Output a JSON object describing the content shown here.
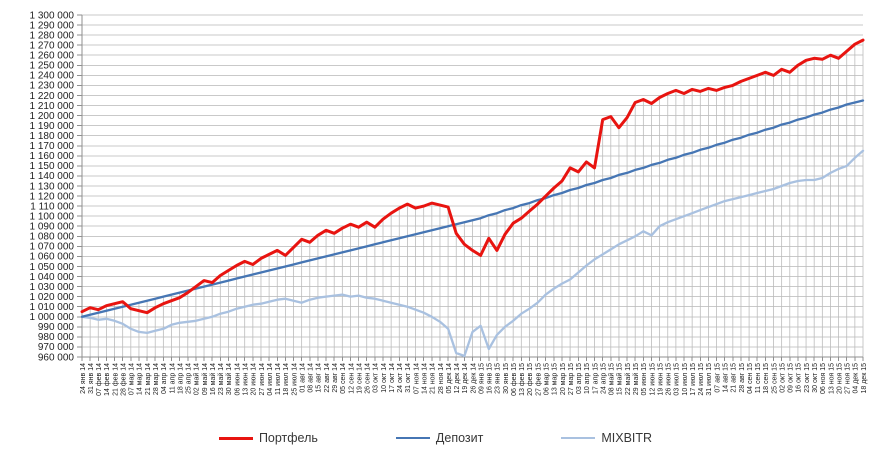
{
  "chart_data": {
    "type": "line",
    "title": "",
    "xlabel": "",
    "ylabel": "",
    "ylim": [
      960000,
      1300000
    ],
    "ytick_step": 10000,
    "grid": {
      "horizontal": true,
      "vertical": false,
      "drop_lines": true
    },
    "legend_position": "bottom",
    "colors": {
      "gridline": "#c9c9c9",
      "dropline": "#bcbcbc",
      "axis": "#8f8f8f",
      "tick_text": "#1f1f1f"
    },
    "ytick_labels": [
      "1 300 000",
      "1 290 000",
      "1 280 000",
      "1 270 000",
      "1 260 000",
      "1 250 000",
      "1 240 000",
      "1 230 000",
      "1 220 000",
      "1 210 000",
      "1 200 000",
      "1 190 000",
      "1 180 000",
      "1 170 000",
      "1 160 000",
      "1 150 000",
      "1 140 000",
      "1 130 000",
      "1 120 000",
      "1 110 000",
      "1 100 000",
      "1 090 000",
      "1 080 000",
      "1 070 000",
      "1 060 000",
      "1 050 000",
      "1 040 000",
      "1 030 000",
      "1 020 000",
      "1 010 000",
      "1 000 000",
      "990 000",
      "980 000",
      "970 000",
      "960 000"
    ],
    "x_labels": [
      "24 янв 14",
      "31 янв 14",
      "07 фев 14",
      "14 фев 14",
      "21 фев 14",
      "28 фев 14",
      "07 мар 14",
      "14 мар 14",
      "21 мар 14",
      "28 мар 14",
      "04 апр 14",
      "11 апр 14",
      "18 апр 14",
      "25 апр 14",
      "02 май 14",
      "09 май 14",
      "16 май 14",
      "23 май 14",
      "30 май 14",
      "06 июн 14",
      "13 июн 14",
      "20 июн 14",
      "27 июн 14",
      "04 июл 14",
      "11 июл 14",
      "18 июл 14",
      "25 июл 14",
      "01 авг 14",
      "08 авг 14",
      "15 авг 14",
      "22 авг 14",
      "29 авг 14",
      "05 сен 14",
      "12 сен 14",
      "19 сен 14",
      "26 сен 14",
      "03 окт 14",
      "10 окт 14",
      "17 окт 14",
      "24 окт 14",
      "31 окт 14",
      "07 ноя 14",
      "14 ноя 14",
      "21 ноя 14",
      "28 ноя 14",
      "05 дек 14",
      "12 дек 14",
      "19 дек 14",
      "26 дек 14",
      "09 янв 15",
      "16 янв 15",
      "23 янв 15",
      "30 янв 15",
      "06 фев 15",
      "13 фев 15",
      "20 фев 15",
      "27 фев 15",
      "06 мар 15",
      "13 мар 15",
      "20 мар 15",
      "27 мар 15",
      "03 апр 15",
      "10 апр 15",
      "17 апр 15",
      "24 апр 15",
      "08 май 15",
      "15 май 15",
      "22 май 15",
      "29 май 15",
      "05 июн 15",
      "12 июн 15",
      "19 июн 15",
      "26 июн 15",
      "03 июл 15",
      "10 июл 15",
      "17 июл 15",
      "24 июл 15",
      "31 июл 15",
      "07 авг 15",
      "14 авг 15",
      "21 авг 15",
      "28 авг 15",
      "04 сен 15",
      "11 сен 15",
      "18 сен 15",
      "25 сен 15",
      "02 окт 15",
      "09 окт 15",
      "16 окт 15",
      "23 окт 15",
      "30 окт 15",
      "06 ноя 15",
      "13 ноя 15",
      "20 ноя 15",
      "27 ноя 15",
      "04 дек 15",
      "18 дек 15"
    ],
    "series": [
      {
        "name": "Портфель",
        "color": "#e81410",
        "line_width": 3,
        "values": [
          1005000,
          1009000,
          1007000,
          1011000,
          1013000,
          1015000,
          1008000,
          1006000,
          1004000,
          1009000,
          1013000,
          1016000,
          1019000,
          1024000,
          1030000,
          1036000,
          1034000,
          1041000,
          1046000,
          1051000,
          1055000,
          1052000,
          1058000,
          1062000,
          1066000,
          1061000,
          1069000,
          1077000,
          1074000,
          1081000,
          1086000,
          1083000,
          1088000,
          1092000,
          1089000,
          1094000,
          1089000,
          1097000,
          1103000,
          1108000,
          1112000,
          1108000,
          1110000,
          1113000,
          1111000,
          1109000,
          1083000,
          1072000,
          1066000,
          1061000,
          1078000,
          1066000,
          1082000,
          1093000,
          1098000,
          1105000,
          1112000,
          1120000,
          1128000,
          1135000,
          1148000,
          1144000,
          1154000,
          1148000,
          1196000,
          1199000,
          1188000,
          1198000,
          1213000,
          1216000,
          1212000,
          1218000,
          1222000,
          1225000,
          1222000,
          1226000,
          1224000,
          1227000,
          1225000,
          1228000,
          1230000,
          1234000,
          1237000,
          1240000,
          1243000,
          1240000,
          1246000,
          1243000,
          1250000,
          1255000,
          1257000,
          1256000,
          1260000,
          1257000,
          1264000,
          1271000,
          1275000
        ]
      },
      {
        "name": "Депозит",
        "color": "#4676b4",
        "line_width": 2.3,
        "values": [
          1000000,
          1002000,
          1004000,
          1006000,
          1008000,
          1010000,
          1012000,
          1014000,
          1016000,
          1018000,
          1020000,
          1022000,
          1024000,
          1026000,
          1028000,
          1030000,
          1032000,
          1034000,
          1036000,
          1038000,
          1040000,
          1042000,
          1044000,
          1046000,
          1048000,
          1050000,
          1052000,
          1054000,
          1056000,
          1058000,
          1060000,
          1062000,
          1064000,
          1066000,
          1068000,
          1070000,
          1072000,
          1074000,
          1076000,
          1078000,
          1080000,
          1082000,
          1084000,
          1086000,
          1088000,
          1090000,
          1092000,
          1094000,
          1096000,
          1098000,
          1101000,
          1103000,
          1106000,
          1108000,
          1111000,
          1113000,
          1116000,
          1118000,
          1121000,
          1123000,
          1126000,
          1128000,
          1131000,
          1133000,
          1136000,
          1138000,
          1141000,
          1143000,
          1146000,
          1148000,
          1151000,
          1153000,
          1156000,
          1158000,
          1161000,
          1163000,
          1166000,
          1168000,
          1171000,
          1173000,
          1176000,
          1178000,
          1181000,
          1183000,
          1186000,
          1188000,
          1191000,
          1193000,
          1196000,
          1198000,
          1201000,
          1203000,
          1206000,
          1208000,
          1211000,
          1213000,
          1215000
        ]
      },
      {
        "name": "MIXBITR",
        "color": "#a9c1e0",
        "line_width": 2.3,
        "values": [
          1000000,
          999000,
          997000,
          998000,
          996000,
          993000,
          988000,
          985000,
          984000,
          986000,
          988000,
          992000,
          994000,
          995000,
          996000,
          998000,
          1000000,
          1003000,
          1005000,
          1008000,
          1010000,
          1012000,
          1013000,
          1015000,
          1017000,
          1018000,
          1016000,
          1014000,
          1017000,
          1019000,
          1020000,
          1021000,
          1022000,
          1020000,
          1021000,
          1019000,
          1018000,
          1016000,
          1014000,
          1012000,
          1010000,
          1007000,
          1004000,
          1000000,
          995000,
          988000,
          964000,
          961000,
          985000,
          991000,
          968000,
          982000,
          990000,
          996000,
          1003000,
          1008000,
          1014000,
          1022000,
          1028000,
          1033000,
          1037000,
          1044000,
          1051000,
          1057000,
          1062000,
          1067000,
          1072000,
          1076000,
          1080000,
          1085000,
          1081000,
          1090000,
          1094000,
          1097000,
          1100000,
          1103000,
          1106000,
          1109000,
          1112000,
          1115000,
          1117000,
          1119000,
          1121000,
          1123000,
          1125000,
          1127000,
          1130000,
          1133000,
          1135000,
          1136000,
          1136000,
          1138000,
          1143000,
          1147000,
          1150000,
          1158000,
          1165000
        ]
      }
    ]
  }
}
